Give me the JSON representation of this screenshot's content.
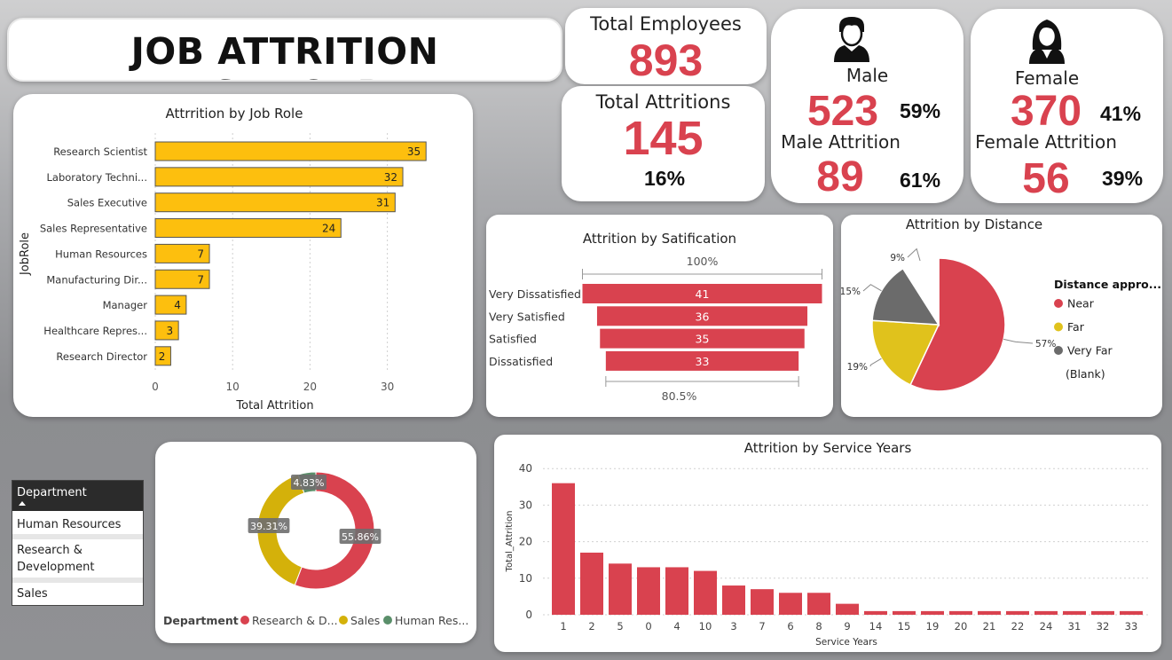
{
  "dashboard_title": "JOB ATTRITION DASHBOARD",
  "colors": {
    "accent": "#d9424f",
    "bar_yellow": "#fdbf0e",
    "far": "#e0c21c",
    "very_far": "#6b6b6b",
    "hr_green": "#5a8f6a"
  },
  "kpis": {
    "total_employees": {
      "label": "Total Employees",
      "value": "893"
    },
    "total_attritions": {
      "label": "Total Attritions",
      "value": "145",
      "pct": "16%"
    },
    "male": {
      "label": "Male",
      "value": "523",
      "pct": "59%",
      "attrition_label": "Male Attrition",
      "attrition_value": "89",
      "attrition_pct": "61%",
      "icon": "male-user-icon"
    },
    "female": {
      "label": "Female",
      "value": "370",
      "pct": "41%",
      "attrition_label": "Female Attrition",
      "attrition_value": "56",
      "attrition_pct": "39%",
      "icon": "female-user-icon"
    }
  },
  "slicer": {
    "title": "Department",
    "items": [
      "Human Resources",
      "Research & Development",
      "Sales"
    ]
  },
  "chart_data": [
    {
      "id": "job_role",
      "type": "bar",
      "orientation": "horizontal",
      "title": "Attrrition by Job Role",
      "xlabel": "Total Attrition",
      "ylabel": "JobRole",
      "categories": [
        "Research Scientist",
        "Laboratory Techni...",
        "Sales Executive",
        "Sales Representative",
        "Human Resources",
        "Manufacturing Dir...",
        "Manager",
        "Healthcare Repres...",
        "Research Director"
      ],
      "values": [
        35,
        32,
        31,
        24,
        7,
        7,
        4,
        3,
        2
      ],
      "xlim": [
        0,
        35
      ],
      "xticks": [
        0,
        10,
        20,
        30
      ],
      "grid": true
    },
    {
      "id": "satisfaction",
      "type": "funnel",
      "title": "Attrition by Satification",
      "categories": [
        "Very Dissatisfied",
        "Very Satisfied",
        "Satisfied",
        "Dissatisfied"
      ],
      "values": [
        41,
        36,
        35,
        33
      ],
      "top_pct_label": "100%",
      "bottom_pct_label": "80.5%"
    },
    {
      "id": "distance",
      "type": "pie",
      "title": "Attrition by Distance",
      "legend_title": "Distance appro...",
      "legend_placement": "right",
      "categories": [
        "Near",
        "Far",
        "Very Far",
        "(Blank)"
      ],
      "values": [
        57,
        19,
        15,
        9
      ],
      "labels": [
        "57%",
        "19%",
        "15%",
        "9%"
      ],
      "colors": [
        "#d9424f",
        "#e0c21c",
        "#6b6b6b",
        "#ffffff"
      ]
    },
    {
      "id": "department",
      "type": "donut",
      "legend_title": "Department",
      "legend_placement": "bottom",
      "categories": [
        "Research & D...",
        "Sales",
        "Human Res..."
      ],
      "values": [
        55.86,
        39.31,
        4.83
      ],
      "labels": [
        "55.86%",
        "39.31%",
        "4.83%"
      ],
      "colors": [
        "#d9424f",
        "#d4b10a",
        "#5a8f6a"
      ]
    },
    {
      "id": "service_years",
      "type": "bar",
      "title": "Attrition by Service Years",
      "xlabel": "Service Years",
      "ylabel": "Total_Attrition",
      "categories": [
        "1",
        "2",
        "5",
        "0",
        "4",
        "10",
        "3",
        "7",
        "6",
        "8",
        "9",
        "14",
        "15",
        "19",
        "20",
        "21",
        "22",
        "24",
        "31",
        "32",
        "33"
      ],
      "values": [
        36,
        17,
        14,
        13,
        13,
        12,
        8,
        7,
        6,
        6,
        3,
        1,
        1,
        1,
        1,
        1,
        1,
        1,
        1,
        1,
        1
      ],
      "ylim": [
        0,
        40
      ],
      "yticks": [
        0,
        10,
        20,
        30,
        40
      ],
      "grid": true
    }
  ]
}
